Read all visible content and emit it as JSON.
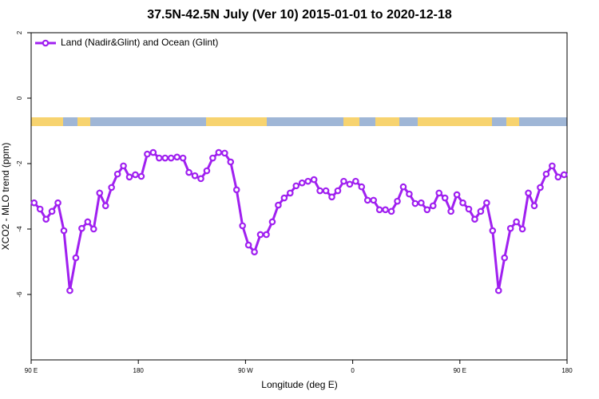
{
  "chart_data": {
    "type": "line",
    "title": "37.5N-42.5N July (Ver 10)   2015-01-01 to 2020-12-18",
    "x_label": "Longitude (deg E)",
    "y_label": "XCO2 - MLO trend (ppm)",
    "x": [
      92.5,
      97.5,
      102.5,
      107.5,
      112.5,
      117.5,
      122.5,
      127.5,
      132.5,
      137.5,
      142.5,
      147.5,
      152.5,
      157.5,
      162.5,
      167.5,
      172.5,
      177.5,
      182.5,
      187.5,
      192.5,
      197.5,
      202.5,
      207.5,
      212.5,
      217.5,
      222.5,
      227.5,
      232.5,
      237.5,
      242.5,
      247.5,
      252.5,
      257.5,
      262.5,
      267.5,
      272.5,
      277.5,
      282.5,
      287.5,
      292.5,
      297.5,
      302.5,
      307.5,
      312.5,
      317.5,
      322.5,
      327.5,
      332.5,
      337.5,
      342.5,
      347.5,
      352.5,
      357.5,
      362.5,
      367.5,
      372.5,
      377.5,
      382.5,
      387.5,
      392.5,
      397.5,
      402.5,
      407.5,
      412.5,
      417.5,
      422.5,
      427.5,
      432.5,
      437.5,
      442.5,
      447.5,
      452.5,
      457.5,
      462.5,
      467.5,
      472.5,
      477.5,
      482.5,
      487.5,
      492.5,
      497.5,
      502.5,
      507.5,
      512.5,
      517.5,
      522.5,
      527.5,
      532.5,
      537.5
    ],
    "series": [
      {
        "name": "Land (Nadir&Glint) and Ocean (Glint)",
        "color": "#a020f0",
        "values": [
          -3.2,
          -3.39,
          -3.7,
          -3.46,
          -3.2,
          -4.05,
          -5.88,
          -4.88,
          -3.98,
          -3.78,
          -4.0,
          -2.9,
          -3.29,
          -2.73,
          -2.32,
          -2.07,
          -2.41,
          -2.34,
          -2.39,
          -1.71,
          -1.66,
          -1.83,
          -1.83,
          -1.83,
          -1.8,
          -1.83,
          -2.27,
          -2.37,
          -2.46,
          -2.22,
          -1.83,
          -1.66,
          -1.68,
          -1.95,
          -2.8,
          -3.9,
          -4.49,
          -4.7,
          -4.17,
          -4.17,
          -3.78,
          -3.27,
          -3.05,
          -2.9,
          -2.68,
          -2.59,
          -2.54,
          -2.49,
          -2.83,
          -2.83,
          -3.02,
          -2.83,
          -2.54,
          -2.63,
          -2.54,
          -2.71,
          -3.12,
          -3.12,
          -3.41,
          -3.41,
          -3.46,
          -3.15,
          -2.71,
          -2.93,
          -3.22,
          -3.2,
          -3.41,
          -3.29,
          -2.9,
          -3.05,
          -3.46,
          -2.95,
          -3.2,
          -3.39,
          -3.7,
          -3.46,
          -3.2,
          -4.05,
          -5.88,
          -4.88,
          -3.98,
          -3.78,
          -4.0,
          -2.9,
          -3.29,
          -2.73,
          -2.32,
          -2.07,
          -2.41,
          -2.34
        ]
      }
    ],
    "xlim": [
      90,
      540
    ],
    "xticks": [
      {
        "value": 90,
        "label": "90 E"
      },
      180,
      {
        "value": 270,
        "label": "90 W"
      },
      {
        "value": 360,
        "label": "0"
      },
      {
        "value": 450,
        "label": "90 E"
      },
      {
        "value": 540,
        "label": "180"
      }
    ],
    "ylim": [
      -8,
      2
    ],
    "yticks": [
      -6,
      -4,
      -2,
      0,
      2
    ],
    "legend": "top-left"
  }
}
